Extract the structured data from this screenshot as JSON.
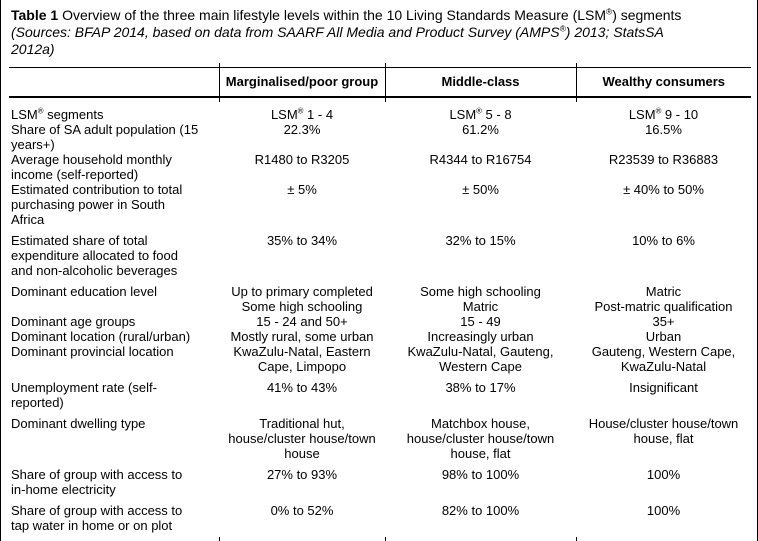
{
  "colors": {
    "text": "#000000",
    "border": "#000000",
    "background": "#ffffff"
  },
  "caption": {
    "label": "Table 1",
    "title": " Overview of the three main lifestyle levels within the 10 Living Standards Measure (LSM®) segments",
    "sources_line1": "(Sources: BFAP 2014, based on data from SAARF All Media and Product Survey (AMPS®) 2013; StatsSA",
    "sources_line2": "2012a)"
  },
  "table": {
    "columns": [
      "",
      "Marginalised/poor group",
      "Middle-class",
      "Wealthy consumers"
    ],
    "rows": [
      {
        "label": "LSM® segments",
        "values": [
          "LSM® 1 - 4",
          "LSM® 5 - 8",
          "LSM® 9 - 10"
        ]
      },
      {
        "label": "Share of SA adult population (15\nyears+)",
        "values": [
          "22.3%",
          "61.2%",
          "16.5%"
        ]
      },
      {
        "label": "Average household monthly\nincome (self-reported)",
        "values": [
          "R1480 to R3205",
          "R4344 to R16754",
          "R23539 to R36883"
        ]
      },
      {
        "label": "Estimated contribution to total\npurchasing power in South\nAfrica",
        "values": [
          "± 5%",
          "± 50%",
          "± 40% to 50%"
        ]
      },
      {
        "label": "Estimated share of total\nexpenditure allocated to food\nand non-alcoholic beverages",
        "values": [
          "35% to 34%",
          "32% to 15%",
          "10% to 6%"
        ]
      },
      {
        "label": "Dominant education level",
        "values": [
          "Up to primary completed\nSome high schooling",
          "Some high schooling\nMatric",
          "Matric\nPost-matric qualification"
        ]
      },
      {
        "label": "Dominant age groups",
        "values": [
          "15 - 24 and 50+",
          "15 - 49",
          "35+"
        ]
      },
      {
        "label": "Dominant location (rural/urban)",
        "values": [
          "Mostly rural, some urban",
          "Increasingly urban",
          "Urban"
        ]
      },
      {
        "label": "Dominant provincial location",
        "values": [
          "KwaZulu-Natal, Eastern\nCape, Limpopo",
          "KwaZulu-Natal, Gauteng,\nWestern Cape",
          "Gauteng, Western Cape,\nKwaZulu-Natal"
        ]
      },
      {
        "label": "Unemployment rate (self-\nreported)",
        "values": [
          "41% to 43%",
          "38% to 17%",
          "Insignificant"
        ]
      },
      {
        "label": "Dominant dwelling type",
        "values": [
          "Traditional hut,\nhouse/cluster house/town\nhouse",
          "Matchbox house,\nhouse/cluster house/town\nhouse, flat",
          "House/cluster house/town\nhouse, flat"
        ]
      },
      {
        "label": "Share of group with access to\nin-home electricity",
        "values": [
          "27% to 93%",
          "98% to 100%",
          "100%"
        ]
      },
      {
        "label": "Share of group with access to\ntap water in home or on plot",
        "values": [
          "0% to 52%",
          "82% to 100%",
          "100%"
        ]
      }
    ]
  }
}
